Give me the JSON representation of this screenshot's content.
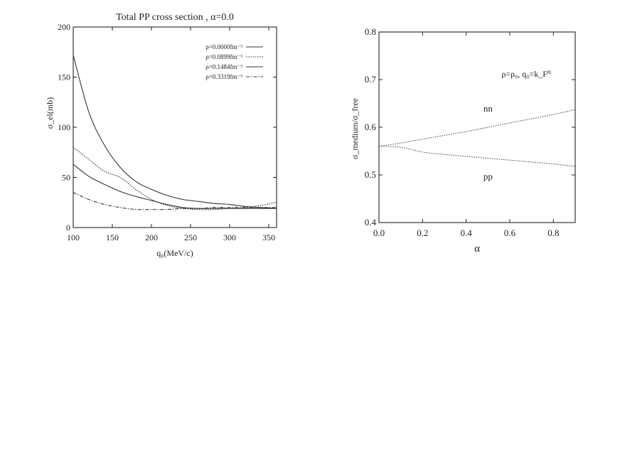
{
  "chart_data": [
    {
      "type": "line",
      "title": "Total PP cross section , α=0.0",
      "xlabel": "q₀(MeV/c)",
      "ylabel": "σ_el(mb)",
      "xlim": [
        100,
        360
      ],
      "ylim": [
        0,
        200
      ],
      "xticks": [
        100,
        150,
        200,
        250,
        300,
        350
      ],
      "yticks": [
        0,
        50,
        100,
        150,
        200
      ],
      "grid": false,
      "legend_position": "top-right",
      "x": [
        100,
        120,
        140,
        160,
        180,
        200,
        220,
        240,
        260,
        280,
        300,
        320,
        340,
        360
      ],
      "series": [
        {
          "name": "ρ=0.0000fm⁻³",
          "style": "solid",
          "values": [
            172,
            115,
            82,
            60,
            46,
            38,
            32,
            28,
            26,
            24,
            23,
            21,
            20,
            19
          ]
        },
        {
          "name": "ρ=0.0899fm⁻³",
          "style": "dotted",
          "values": [
            80,
            68,
            56,
            50,
            38,
            28,
            22,
            19,
            18,
            18,
            19,
            20,
            22,
            25
          ]
        },
        {
          "name": "ρ=0.1484fm⁻³",
          "style": "solid",
          "values": [
            63,
            51,
            43,
            36,
            31,
            27,
            23,
            20,
            19,
            19,
            19,
            19,
            19,
            19
          ]
        },
        {
          "name": "ρ=0.3319fm⁻³",
          "style": "dashdot",
          "values": [
            35,
            28,
            23,
            20,
            18,
            18,
            18,
            19,
            19,
            20,
            20,
            20,
            20,
            20
          ]
        }
      ]
    },
    {
      "type": "line",
      "title": "",
      "annotation": "ρ=ρ₀, q₀=k_F⁰",
      "xlabel": "α",
      "ylabel": "σ_medium/σ_free",
      "xlim": [
        0,
        0.9
      ],
      "ylim": [
        0.4,
        0.8
      ],
      "xticks": [
        "0.0",
        "0.2",
        "0.4",
        "0.6",
        "0.8"
      ],
      "yticks": [
        "0.4",
        "0.5",
        "0.6",
        "0.7",
        "0.8"
      ],
      "grid": false,
      "x": [
        0,
        0.1,
        0.2,
        0.3,
        0.4,
        0.5,
        0.6,
        0.7,
        0.8,
        0.9
      ],
      "series": [
        {
          "name": "nn",
          "style": "dotted",
          "values": [
            0.56,
            0.567,
            0.575,
            0.583,
            0.591,
            0.6,
            0.609,
            0.618,
            0.627,
            0.637
          ]
        },
        {
          "name": "pp",
          "style": "dotted",
          "values": [
            0.56,
            0.558,
            0.548,
            0.543,
            0.539,
            0.535,
            0.531,
            0.527,
            0.523,
            0.518
          ]
        }
      ]
    }
  ]
}
